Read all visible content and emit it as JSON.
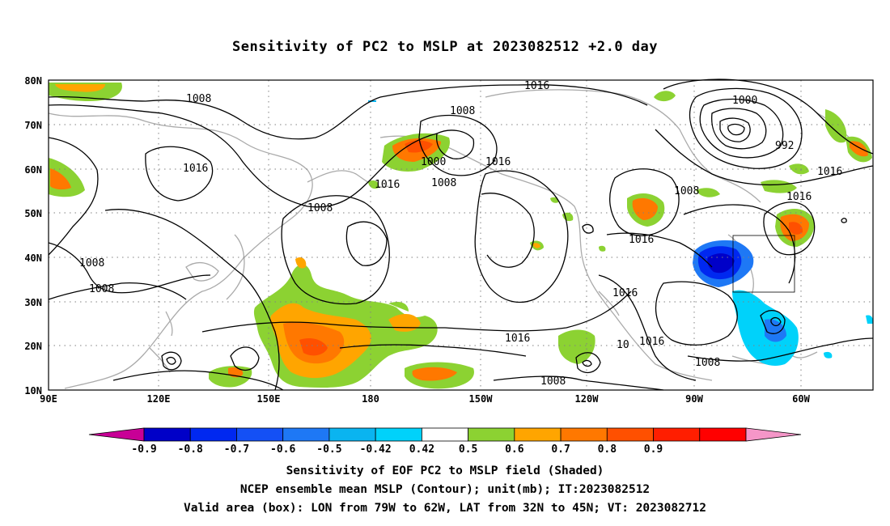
{
  "title": "Sensitivity of PC2 to MSLP at 2023082512 +2.0 day",
  "lat_labels": [
    "80N",
    "70N",
    "60N",
    "50N",
    "40N",
    "30N",
    "20N",
    "10N"
  ],
  "lon_labels": [
    "90E",
    "120E",
    "150E",
    "180",
    "150W",
    "120W",
    "90W",
    "60W"
  ],
  "contour_labels": [
    "1016",
    "1008",
    "1000",
    "992",
    "1008",
    "1016",
    "1008",
    "1000",
    "1016",
    "1008",
    "1016",
    "1008",
    "1008",
    "1008",
    "1016",
    "1016",
    "1016",
    "1016",
    "1008",
    "1016",
    "10",
    "1016",
    "1008"
  ],
  "colorbar": {
    "colors": [
      "#c80096",
      "#0000c8",
      "#0028f0",
      "#1450f5",
      "#1e78f5",
      "#0ab4f0",
      "#00d2fa",
      "#ffffff",
      "#8cd232",
      "#ffa500",
      "#ff7800",
      "#ff5000",
      "#ff1e00",
      "#ff0000",
      "#f596c8"
    ],
    "labels": [
      "-0.9",
      "-0.8",
      "-0.7",
      "-0.6",
      "-0.5",
      "-0.42",
      "0.42",
      "0.5",
      "0.6",
      "0.7",
      "0.8",
      "0.9"
    ]
  },
  "valid_box": {
    "lon_from": "79W",
    "lon_to": "62W",
    "lat_from": "32N",
    "lat_to": "45N"
  },
  "captions": [
    "Sensitivity of EOF PC2 to MSLP field (Shaded)",
    "NCEP ensemble mean MSLP (Contour); unit(mb); IT:2023082512",
    "Valid area (box): LON from 79W to 62W, LAT from 32N to 45N; VT: 2023082712"
  ]
}
